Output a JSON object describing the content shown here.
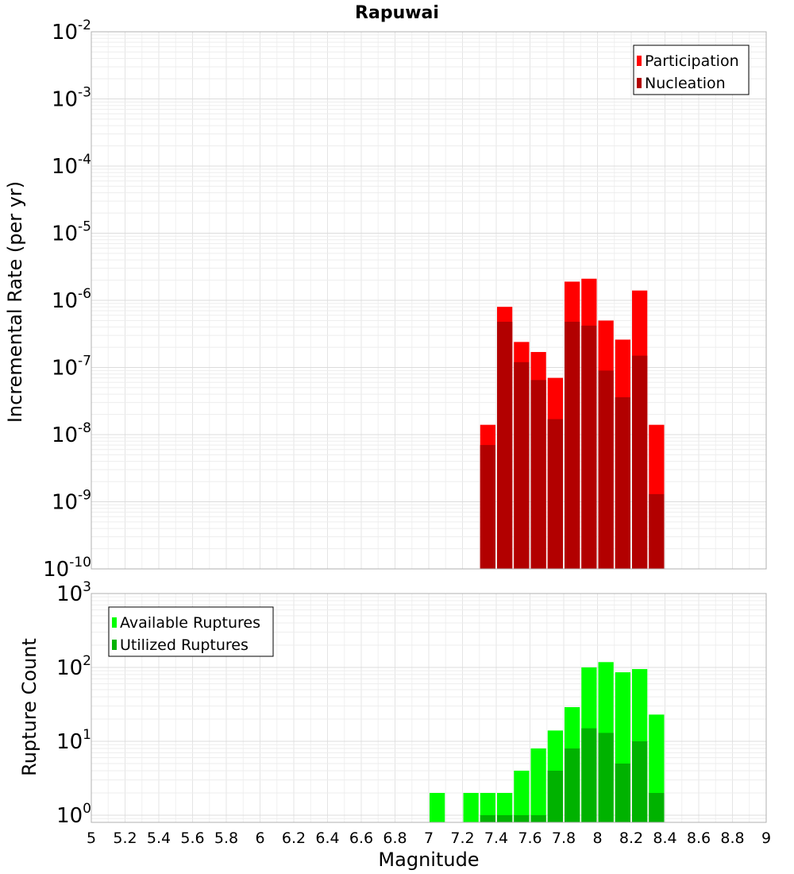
{
  "chart_data": [
    {
      "type": "bar",
      "title": "Rapuwai",
      "ylabel": "Incremental Rate (per yr)",
      "xlabel": "",
      "yscale": "log",
      "ylim": [
        1e-10,
        0.01
      ],
      "xlim": [
        5,
        9
      ],
      "y_ticks": [
        {
          "base": "10",
          "exp": "-2",
          "value": 0.01
        },
        {
          "base": "10",
          "exp": "-3",
          "value": 0.001
        },
        {
          "base": "10",
          "exp": "-4",
          "value": 0.0001
        },
        {
          "base": "10",
          "exp": "-5",
          "value": 1e-05
        },
        {
          "base": "10",
          "exp": "-6",
          "value": 1e-06
        },
        {
          "base": "10",
          "exp": "-7",
          "value": 1e-07
        },
        {
          "base": "10",
          "exp": "-8",
          "value": 1e-08
        },
        {
          "base": "10",
          "exp": "-9",
          "value": 1e-09
        },
        {
          "base": "10",
          "exp": "-10",
          "value": 1e-10
        }
      ],
      "grid": true,
      "legend_position": "top-right",
      "x": [
        7.35,
        7.45,
        7.55,
        7.65,
        7.75,
        7.85,
        7.95,
        8.05,
        8.15,
        8.25,
        8.35
      ],
      "series": [
        {
          "name": "Participation",
          "color": "#ff0000",
          "values": [
            1.4e-08,
            8e-07,
            2.4e-07,
            1.7e-07,
            7e-08,
            1.9e-06,
            2.1e-06,
            5e-07,
            2.6e-07,
            1.4e-06,
            1.4e-08
          ]
        },
        {
          "name": "Nucleation",
          "color": "#b20000",
          "values": [
            7e-09,
            4.8e-07,
            1.2e-07,
            6.5e-08,
            1.7e-08,
            4.8e-07,
            4.2e-07,
            9e-08,
            3.6e-08,
            1.5e-07,
            1.3e-09
          ]
        }
      ]
    },
    {
      "type": "bar",
      "title": "",
      "ylabel": "Rupture Count",
      "xlabel": "Magnitude",
      "yscale": "log",
      "ylim": [
        0.8,
        1000
      ],
      "xlim": [
        5,
        9
      ],
      "y_ticks": [
        {
          "base": "10",
          "exp": "3",
          "value": 1000
        },
        {
          "base": "10",
          "exp": "2",
          "value": 100
        },
        {
          "base": "10",
          "exp": "1",
          "value": 10
        },
        {
          "base": "10",
          "exp": "0",
          "value": 1
        }
      ],
      "x_tick_labels": [
        "5",
        "5.2",
        "5.4",
        "5.6",
        "5.8",
        "6",
        "6.2",
        "6.4",
        "6.6",
        "6.8",
        "7",
        "7.2",
        "7.4",
        "7.6",
        "7.8",
        "8",
        "8.2",
        "8.4",
        "8.6",
        "8.8",
        "9"
      ],
      "grid": true,
      "legend_position": "top-left",
      "x": [
        7.05,
        7.15,
        7.25,
        7.35,
        7.45,
        7.55,
        7.65,
        7.75,
        7.85,
        7.95,
        8.05,
        8.15,
        8.25,
        8.35
      ],
      "series": [
        {
          "name": "Available Ruptures",
          "color": "#00ff00",
          "values": [
            2,
            0,
            2,
            2,
            2,
            4,
            8,
            14,
            29,
            100,
            118,
            86,
            95,
            23
          ]
        },
        {
          "name": "Utilized Ruptures",
          "color": "#00b200",
          "values": [
            0,
            0,
            0,
            1,
            1,
            1,
            1,
            4,
            8,
            15,
            13,
            5,
            10,
            2
          ]
        }
      ]
    }
  ]
}
